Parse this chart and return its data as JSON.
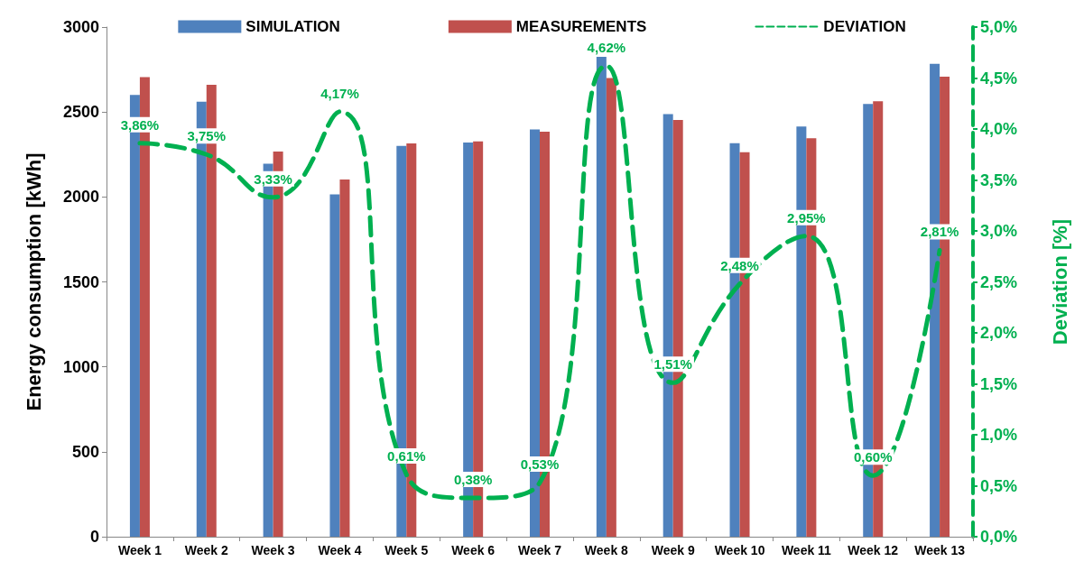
{
  "chart_data": {
    "type": "bar",
    "ylabel": "Energy consumption [kWh]",
    "y2label": "Deviation [%]",
    "categories": [
      "Week 1",
      "Week 2",
      "Week 3",
      "Week 4",
      "Week 5",
      "Week 6",
      "Week 7",
      "Week 8",
      "Week 9",
      "Week 10",
      "Week 11",
      "Week 12",
      "Week 13"
    ],
    "series": [
      {
        "name": "SIMULATION",
        "color": "#4f81bd",
        "values": [
          2600,
          2560,
          2195,
          2015,
          2300,
          2320,
          2398,
          2825,
          2488,
          2317,
          2415,
          2548,
          2784
        ]
      },
      {
        "name": "MEASUREMENTS",
        "color": "#c0504d",
        "values": [
          2705,
          2660,
          2267,
          2103,
          2315,
          2327,
          2384,
          2700,
          2453,
          2263,
          2346,
          2563,
          2708
        ]
      },
      {
        "name": "DEVIATION",
        "type": "line",
        "axis": "y2",
        "color": "#00b050",
        "line_style": "dashed",
        "marker": "none",
        "values": [
          3.86,
          3.75,
          3.33,
          4.17,
          0.61,
          0.38,
          0.53,
          4.62,
          1.51,
          2.48,
          2.95,
          0.6,
          2.81
        ],
        "value_labels": [
          "3,86%",
          "3,75%",
          "3,33%",
          "4,17%",
          "0,61%",
          "0,38%",
          "0,53%",
          "4,62%",
          "1,51%",
          "2,48%",
          "2,95%",
          "0,60%",
          "2,81%"
        ]
      }
    ],
    "ylim": [
      0,
      3000
    ],
    "yticks": [
      0,
      500,
      1000,
      1500,
      2000,
      2500,
      3000
    ],
    "y2lim": [
      0,
      5
    ],
    "y2ticks": [
      {
        "value": 0,
        "label": "0,0%"
      },
      {
        "value": 0.5,
        "label": "0,5%"
      },
      {
        "value": 1,
        "label": "1,0%"
      },
      {
        "value": 1.5,
        "label": "1,5%"
      },
      {
        "value": 2,
        "label": "2,0%"
      },
      {
        "value": 2.5,
        "label": "2,5%"
      },
      {
        "value": 3,
        "label": "3,0%"
      },
      {
        "value": 3.5,
        "label": "3,5%"
      },
      {
        "value": 4,
        "label": "4,0%"
      },
      {
        "value": 4.5,
        "label": "4,5%"
      },
      {
        "value": 5,
        "label": "5,0%"
      }
    ],
    "grid": false,
    "legend": "top"
  }
}
